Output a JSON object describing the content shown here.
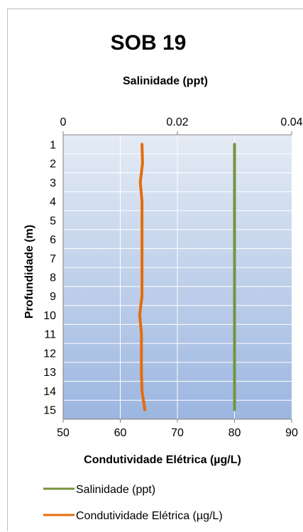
{
  "chart_data": {
    "type": "line",
    "title": "SOB 19",
    "ylabel": "Profundidade (m)",
    "y_axis": {
      "ticks": [
        1,
        2,
        3,
        4,
        5,
        6,
        7,
        8,
        9,
        10,
        11,
        12,
        13,
        14,
        15
      ],
      "ylim": [
        0.5,
        15.5
      ],
      "reversed": true
    },
    "top_axis": {
      "label": "Salinidade (ppt)",
      "ticks": [
        "0",
        "0.02",
        "0.04"
      ],
      "range": [
        0,
        0.04
      ]
    },
    "bottom_axis": {
      "label": "Condutividade Elétrica (µg/L)",
      "ticks": [
        "50",
        "60",
        "70",
        "80",
        "90"
      ],
      "range": [
        50,
        90
      ]
    },
    "series": [
      {
        "name": "Salinidade (ppt)",
        "axis": "top",
        "color": "#77933c",
        "depth": [
          1,
          2,
          3,
          4,
          5,
          6,
          7,
          8,
          9,
          10,
          11,
          12,
          13,
          14,
          15
        ],
        "values": [
          0.03,
          0.03,
          0.03,
          0.03,
          0.03,
          0.03,
          0.03,
          0.03,
          0.03,
          0.03,
          0.03,
          0.03,
          0.03,
          0.03,
          0.03
        ]
      },
      {
        "name": "Condutividade Elétrica (µg/L)",
        "axis": "bottom",
        "color": "#e46c0a",
        "depth": [
          1,
          2,
          3,
          4,
          5,
          6,
          7,
          8,
          9,
          10,
          11,
          12,
          13,
          14,
          15
        ],
        "values": [
          63.8,
          63.9,
          63.5,
          63.8,
          63.8,
          63.8,
          63.8,
          63.8,
          63.8,
          63.4,
          63.7,
          63.7,
          63.7,
          63.8,
          64.3
        ]
      }
    ],
    "grid": true,
    "legend_position": "bottom-left"
  }
}
